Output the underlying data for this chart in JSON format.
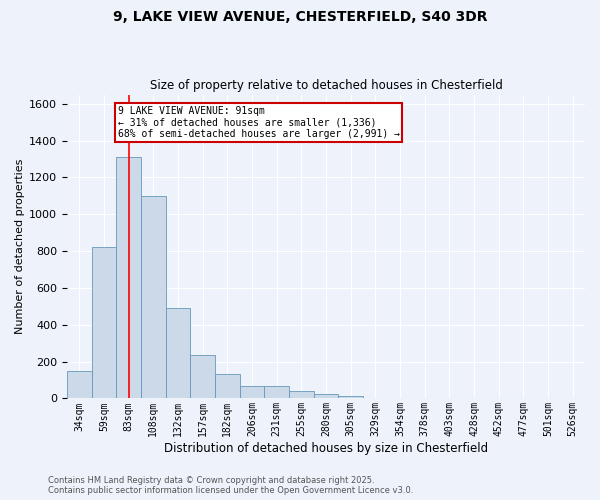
{
  "title_line1": "9, LAKE VIEW AVENUE, CHESTERFIELD, S40 3DR",
  "title_line2": "Size of property relative to detached houses in Chesterfield",
  "xlabel": "Distribution of detached houses by size in Chesterfield",
  "ylabel": "Number of detached properties",
  "categories": [
    "34sqm",
    "59sqm",
    "83sqm",
    "108sqm",
    "132sqm",
    "157sqm",
    "182sqm",
    "206sqm",
    "231sqm",
    "255sqm",
    "280sqm",
    "305sqm",
    "329sqm",
    "354sqm",
    "378sqm",
    "403sqm",
    "428sqm",
    "452sqm",
    "477sqm",
    "501sqm",
    "526sqm"
  ],
  "values": [
    150,
    820,
    1310,
    1100,
    490,
    235,
    130,
    70,
    65,
    38,
    25,
    12,
    0,
    0,
    0,
    0,
    0,
    0,
    0,
    0,
    0
  ],
  "bar_color": "#ccd9e8",
  "bar_edge_color": "#6699bb",
  "red_line_x": 2.0,
  "annotation_text": "9 LAKE VIEW AVENUE: 91sqm\n← 31% of detached houses are smaller (1,336)\n68% of semi-detached houses are larger (2,991) →",
  "annotation_box_color": "#ffffff",
  "annotation_box_edge": "#cc0000",
  "footer_line1": "Contains HM Land Registry data © Crown copyright and database right 2025.",
  "footer_line2": "Contains public sector information licensed under the Open Government Licence v3.0.",
  "ylim": [
    0,
    1650
  ],
  "background_color": "#eef2fb",
  "grid_color": "#ffffff"
}
